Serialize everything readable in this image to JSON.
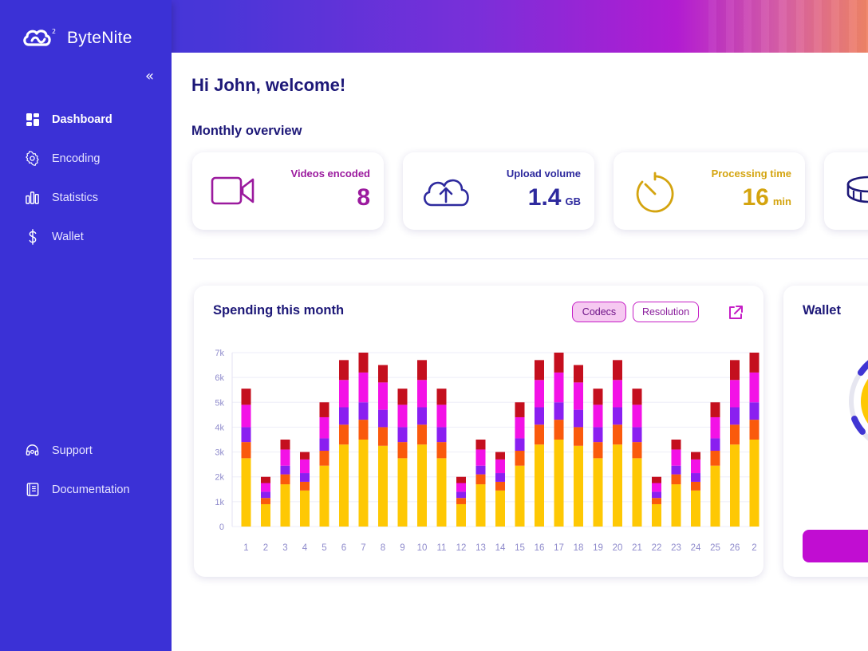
{
  "app": {
    "name": "ByteNite"
  },
  "sidebar": {
    "collapse_icon": "double-chevron-left-icon",
    "items": [
      {
        "label": "Dashboard",
        "icon": "grid-icon",
        "active": true
      },
      {
        "label": "Encoding",
        "icon": "gear-icon",
        "active": false
      },
      {
        "label": "Statistics",
        "icon": "bar-chart-icon",
        "active": false
      },
      {
        "label": "Wallet",
        "icon": "dollar-icon",
        "active": false
      }
    ],
    "bottom_items": [
      {
        "label": "Support",
        "icon": "headset-icon"
      },
      {
        "label": "Documentation",
        "icon": "book-icon"
      }
    ]
  },
  "main": {
    "greeting": "Hi John, welcome!",
    "overview_title": "Monthly overview",
    "stats": [
      {
        "label": "Videos encoded",
        "value": "8",
        "unit": "",
        "icon": "video-camera-icon",
        "color": "#9b1a9e"
      },
      {
        "label": "Upload volume",
        "value": "1.4",
        "unit": "GB",
        "icon": "cloud-upload-icon",
        "color": "#2e2a9e"
      },
      {
        "label": "Processing time",
        "value": "16",
        "unit": "min",
        "icon": "timer-icon",
        "color": "#d4a40f"
      },
      {
        "label": "",
        "value": "",
        "unit": "",
        "icon": "coins-icon",
        "color": "#1d1878"
      }
    ],
    "spending": {
      "title": "Spending this month",
      "filters": [
        {
          "label": "Codecs",
          "active": true
        },
        {
          "label": "Resolution",
          "active": false
        }
      ],
      "external_link_icon": "external-link-icon"
    },
    "wallet": {
      "title": "Wallet"
    }
  },
  "colors": {
    "sidebar": "#3b31d6",
    "navy": "#1d1878",
    "seg_yellow": "#fec804",
    "seg_orange": "#fa5a0c",
    "seg_purple": "#8a1ff0",
    "seg_pink": "#f312e6",
    "seg_red": "#c40f1e"
  },
  "chart_data": {
    "type": "bar",
    "stacked": true,
    "title": "Spending this month",
    "categories": [
      "1",
      "2",
      "3",
      "4",
      "5",
      "6",
      "7",
      "8",
      "9",
      "10",
      "11",
      "12",
      "13",
      "14",
      "15",
      "16",
      "17",
      "18",
      "19",
      "20",
      "21",
      "22",
      "23",
      "24",
      "25",
      "26",
      "2"
    ],
    "ylim": [
      0,
      7000
    ],
    "yticks": [
      "0",
      "1k",
      "2k",
      "3k",
      "4k",
      "5k",
      "6k",
      "7k"
    ],
    "grid": true,
    "series": [
      {
        "values": [
          2750,
          900,
          1700,
          1450,
          2450,
          3300,
          3500,
          3250,
          2750,
          3300,
          2750,
          900,
          1700,
          1450,
          2450,
          3300,
          3500,
          3250,
          2750,
          3300,
          2750,
          900,
          1700,
          1450,
          2450,
          3300,
          3500
        ]
      },
      {
        "values": [
          650,
          250,
          400,
          350,
          600,
          800,
          800,
          750,
          650,
          800,
          650,
          250,
          400,
          350,
          600,
          800,
          800,
          750,
          650,
          800,
          650,
          250,
          400,
          350,
          600,
          800,
          800
        ]
      },
      {
        "values": [
          600,
          250,
          350,
          350,
          500,
          700,
          700,
          700,
          600,
          700,
          600,
          250,
          350,
          350,
          500,
          700,
          700,
          700,
          600,
          700,
          600,
          250,
          350,
          350,
          500,
          700,
          700
        ]
      },
      {
        "values": [
          900,
          350,
          650,
          550,
          850,
          1100,
          1200,
          1100,
          900,
          1100,
          900,
          350,
          650,
          550,
          850,
          1100,
          1200,
          1100,
          900,
          1100,
          900,
          350,
          650,
          550,
          850,
          1100,
          1200
        ]
      },
      {
        "values": [
          650,
          250,
          400,
          300,
          600,
          800,
          800,
          700,
          650,
          800,
          650,
          250,
          400,
          300,
          600,
          800,
          800,
          700,
          650,
          800,
          650,
          250,
          400,
          300,
          600,
          800,
          800
        ]
      }
    ]
  }
}
